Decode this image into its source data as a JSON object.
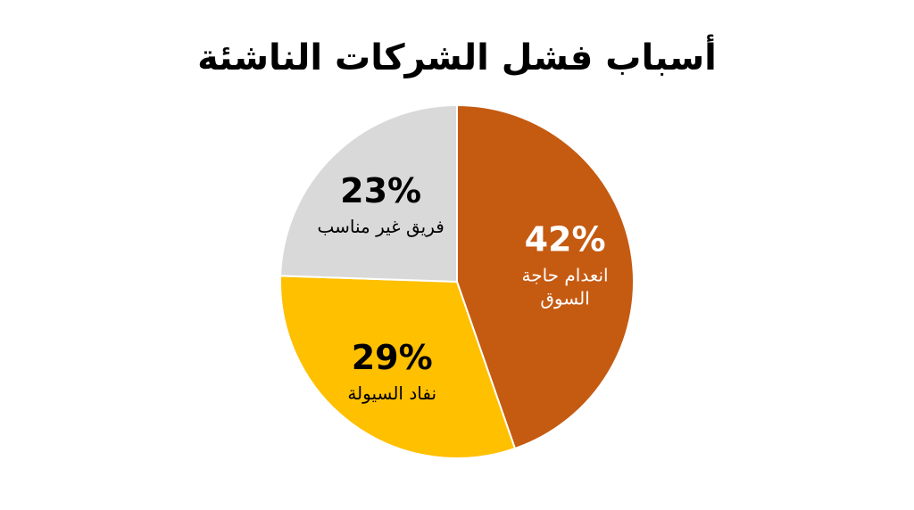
{
  "chart_data": {
    "type": "pie",
    "title": "أسباب فشل الشركات الناشئة",
    "slices": [
      {
        "label": "انعدام حاجة السوق",
        "label_lines": [
          "انعدام حاجة",
          "السوق"
        ],
        "value": 42,
        "display": "42%",
        "color": "#c55a11",
        "text_color": "#ffffff"
      },
      {
        "label": "نفاد السيولة",
        "label_lines": [
          "نفاد السيولة"
        ],
        "value": 29,
        "display": "29%",
        "color": "#ffc000",
        "text_color": "#000000"
      },
      {
        "label": "فريق غير مناسب",
        "label_lines": [
          "فريق غير مناسب"
        ],
        "value": 23,
        "display": "23%",
        "color": "#d9d9d9",
        "text_color": "#000000"
      }
    ],
    "start_angle": "12 o'clock",
    "direction": "clockwise",
    "legend": "none"
  }
}
